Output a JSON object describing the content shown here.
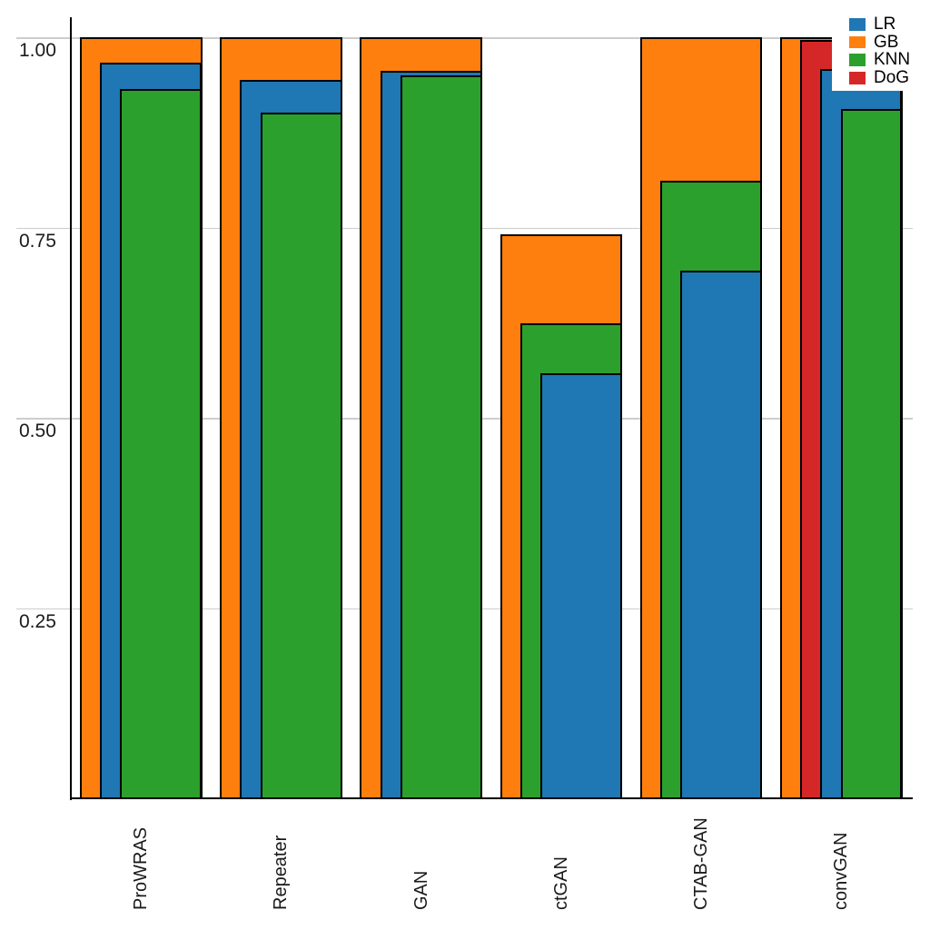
{
  "figure": {
    "background": "#ffffff"
  },
  "legend": {
    "position": "top-right",
    "items": [
      {
        "label": "LR",
        "color": "#1f77b4"
      },
      {
        "label": "GB",
        "color": "#ff7f0e"
      },
      {
        "label": "KNN",
        "color": "#2ca02c"
      },
      {
        "label": "DoG",
        "color": "#d62728"
      }
    ]
  },
  "chart_data": {
    "type": "bar",
    "style": "nested-overlapping-bars-right-aligned-widest-behind",
    "title": "",
    "xlabel": "",
    "ylabel": "",
    "categories": [
      "ProWRAS",
      "Repeater",
      "GAN",
      "ctGAN",
      "CTAB-GAN",
      "convGAN"
    ],
    "series": [
      {
        "name": "LR",
        "color": "#1f77b4",
        "values": [
          0.966,
          0.944,
          0.956,
          0.559,
          0.693,
          0.958
        ]
      },
      {
        "name": "GB",
        "color": "#ff7f0e",
        "values": [
          1.0,
          1.0,
          1.0,
          0.741,
          1.0,
          1.0
        ]
      },
      {
        "name": "KNN",
        "color": "#2ca02c",
        "values": [
          0.932,
          0.901,
          0.95,
          0.624,
          0.812,
          0.906
        ]
      },
      {
        "name": "DoG",
        "color": "#d62728",
        "values": [
          null,
          null,
          null,
          null,
          null,
          0.997
        ]
      }
    ],
    "yticks": [
      1.0,
      0.75,
      0.5,
      0.25
    ],
    "ytick_labels": [
      "1.00",
      "0.75",
      "0.50",
      "0.25"
    ],
    "ylim": [
      0,
      1.026
    ],
    "grid": true,
    "gridline_color": "#cdcdcd",
    "bar_edge_color": "#000000",
    "legend_position": "top-right"
  }
}
